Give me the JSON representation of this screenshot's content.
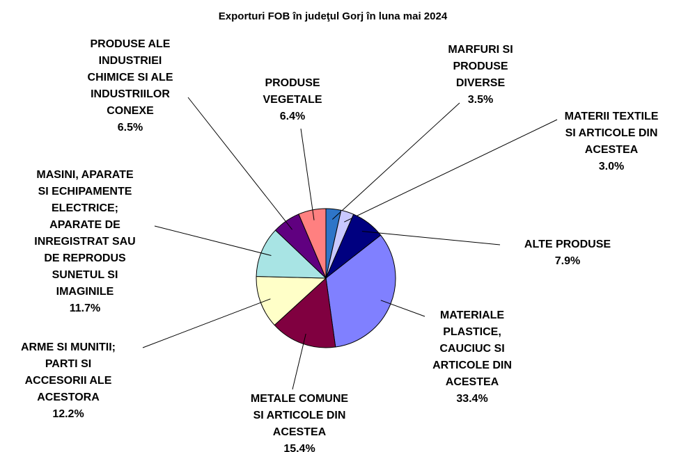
{
  "chart_data": {
    "type": "pie",
    "title": "Exporturi FOB în judeţul Gorj în luna mai 2024",
    "categories": [
      "MARFURI SI\nPRODUSE\nDIVERSE",
      "MATERII TEXTILE\nSI ARTICOLE DIN\nACESTEA",
      "ALTE PRODUSE",
      "MATERIALE\nPLASTICE,\nCAUCIUC SI\nARTICOLE DIN\nACESTEA",
      "METALE COMUNE\nSI ARTICOLE DIN\nACESTEA",
      "ARME SI MUNITII;\nPARTI SI\nACCESORII ALE\nACESTORA",
      "MASINI, APARATE\nSI ECHIPAMENTE\nELECTRICE;\nAPARATE DE\nINREGISTRAT SAU\nDE REPRODUS\nSUNETUL SI\nIMAGINILE",
      "PRODUSE ALE\nINDUSTRIEI\nCHIMICE SI ALE\nINDUSTRIILOR\nCONEXE",
      "PRODUSE\nVEGETALE"
    ],
    "values": [
      3.5,
      3.0,
      7.9,
      33.4,
      15.4,
      12.2,
      11.7,
      6.5,
      6.4
    ],
    "value_labels": [
      "3.5%",
      "3.0%",
      "7.9%",
      "33.4%",
      "15.4%",
      "12.2%",
      "11.7%",
      "6.5%",
      "6.4%"
    ],
    "colors": [
      "#2e75c8",
      "#c8c8ff",
      "#000080",
      "#8080ff",
      "#800040",
      "#ffffc8",
      "#a8e4e4",
      "#600080",
      "#ff8080"
    ]
  }
}
